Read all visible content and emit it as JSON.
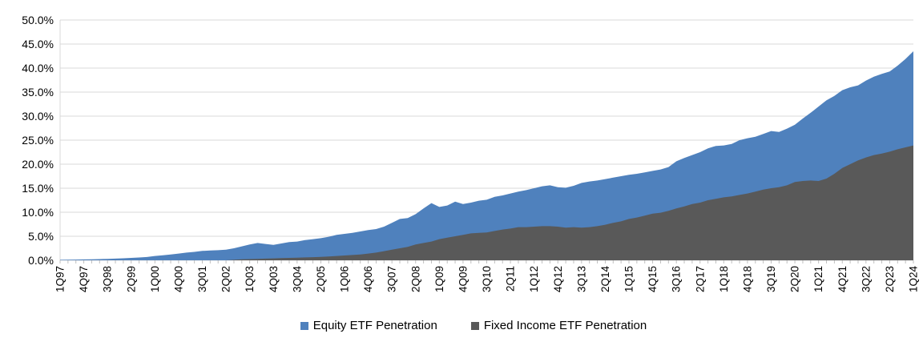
{
  "chart_data": {
    "type": "area",
    "title": "",
    "xlabel": "",
    "ylabel": "",
    "ylim": [
      0,
      50
    ],
    "ytick_step": 5,
    "ytick_labels": [
      "0.0%",
      "5.0%",
      "10.0%",
      "15.0%",
      "20.0%",
      "25.0%",
      "30.0%",
      "35.0%",
      "40.0%",
      "45.0%",
      "50.0%"
    ],
    "xlabel_every": 3,
    "grid": "horizontal",
    "gridline_color": "#d9d9d9",
    "tick_color": "#bfbfbf",
    "legend_position": "bottom",
    "overlap": "overlaid (not stacked): gray drawn in front of blue",
    "categories": [
      "1Q97",
      "2Q97",
      "3Q97",
      "4Q97",
      "1Q98",
      "2Q98",
      "3Q98",
      "4Q98",
      "1Q99",
      "2Q99",
      "3Q99",
      "4Q99",
      "1Q00",
      "2Q00",
      "3Q00",
      "4Q00",
      "1Q01",
      "2Q01",
      "3Q01",
      "4Q01",
      "1Q02",
      "2Q02",
      "3Q02",
      "4Q02",
      "1Q03",
      "2Q03",
      "3Q03",
      "4Q03",
      "1Q04",
      "2Q04",
      "3Q04",
      "4Q04",
      "1Q05",
      "2Q05",
      "3Q05",
      "4Q05",
      "1Q06",
      "2Q06",
      "3Q06",
      "4Q06",
      "1Q07",
      "2Q07",
      "3Q07",
      "4Q07",
      "1Q08",
      "2Q08",
      "3Q08",
      "4Q08",
      "1Q09",
      "2Q09",
      "3Q09",
      "4Q09",
      "1Q10",
      "2Q10",
      "3Q10",
      "4Q10",
      "1Q11",
      "2Q11",
      "3Q11",
      "4Q11",
      "1Q12",
      "2Q12",
      "3Q12",
      "4Q12",
      "1Q13",
      "2Q13",
      "3Q13",
      "4Q13",
      "1Q14",
      "2Q14",
      "3Q14",
      "4Q14",
      "1Q15",
      "2Q15",
      "3Q15",
      "4Q15",
      "1Q16",
      "2Q16",
      "3Q16",
      "4Q16",
      "1Q17",
      "2Q17",
      "3Q17",
      "4Q17",
      "1Q18",
      "2Q18",
      "3Q18",
      "4Q18",
      "1Q19",
      "2Q19",
      "3Q19",
      "4Q19",
      "1Q20",
      "2Q20",
      "3Q20",
      "4Q20",
      "1Q21",
      "2Q21",
      "3Q21",
      "4Q21",
      "1Q22",
      "2Q22",
      "3Q22",
      "4Q22",
      "1Q23",
      "2Q23",
      "3Q23",
      "4Q23",
      "1Q24"
    ],
    "series": [
      {
        "name": "Equity ETF Penetration",
        "color": "#4f81bd",
        "values": [
          0.1,
          0.12,
          0.15,
          0.18,
          0.21,
          0.25,
          0.3,
          0.36,
          0.42,
          0.5,
          0.58,
          0.68,
          0.9,
          1.05,
          1.2,
          1.4,
          1.6,
          1.75,
          1.95,
          2.05,
          2.1,
          2.2,
          2.5,
          2.9,
          3.3,
          3.6,
          3.4,
          3.2,
          3.5,
          3.8,
          3.9,
          4.2,
          4.4,
          4.6,
          4.9,
          5.3,
          5.5,
          5.7,
          6.0,
          6.3,
          6.5,
          7.0,
          7.8,
          8.6,
          8.8,
          9.6,
          10.8,
          11.9,
          11.1,
          11.4,
          12.2,
          11.7,
          12.0,
          12.4,
          12.6,
          13.2,
          13.5,
          13.9,
          14.3,
          14.6,
          15.0,
          15.4,
          15.6,
          15.2,
          15.1,
          15.5,
          16.1,
          16.4,
          16.6,
          16.9,
          17.2,
          17.5,
          17.8,
          18.0,
          18.3,
          18.6,
          18.9,
          19.4,
          20.6,
          21.3,
          21.9,
          22.5,
          23.3,
          23.8,
          23.9,
          24.2,
          25.0,
          25.4,
          25.7,
          26.3,
          26.9,
          26.7,
          27.4,
          28.2,
          29.5,
          30.7,
          32.0,
          33.3,
          34.2,
          35.4,
          36.0,
          36.4,
          37.4,
          38.2,
          38.8,
          39.3,
          40.5,
          41.9,
          43.5
        ]
      },
      {
        "name": "Fixed Income ETF Penetration",
        "color": "#595959",
        "values": [
          0,
          0,
          0,
          0,
          0,
          0,
          0,
          0,
          0,
          0,
          0,
          0,
          0,
          0,
          0,
          0,
          0,
          0,
          0,
          0,
          0,
          0,
          0.1,
          0.2,
          0.25,
          0.3,
          0.35,
          0.4,
          0.45,
          0.5,
          0.55,
          0.6,
          0.65,
          0.7,
          0.8,
          0.9,
          1.0,
          1.1,
          1.2,
          1.4,
          1.6,
          1.9,
          2.2,
          2.5,
          2.8,
          3.3,
          3.6,
          3.9,
          4.4,
          4.7,
          5.0,
          5.3,
          5.6,
          5.7,
          5.8,
          6.1,
          6.4,
          6.6,
          6.9,
          6.9,
          7.0,
          7.1,
          7.1,
          7.0,
          6.8,
          6.9,
          6.8,
          6.9,
          7.1,
          7.4,
          7.8,
          8.1,
          8.6,
          8.9,
          9.3,
          9.7,
          9.9,
          10.3,
          10.8,
          11.2,
          11.7,
          12.0,
          12.5,
          12.8,
          13.1,
          13.3,
          13.6,
          13.9,
          14.3,
          14.7,
          15.0,
          15.2,
          15.6,
          16.3,
          16.5,
          16.6,
          16.5,
          17.0,
          18.0,
          19.2,
          20.0,
          20.8,
          21.4,
          21.9,
          22.2,
          22.6,
          23.1,
          23.5,
          23.9
        ]
      }
    ]
  }
}
